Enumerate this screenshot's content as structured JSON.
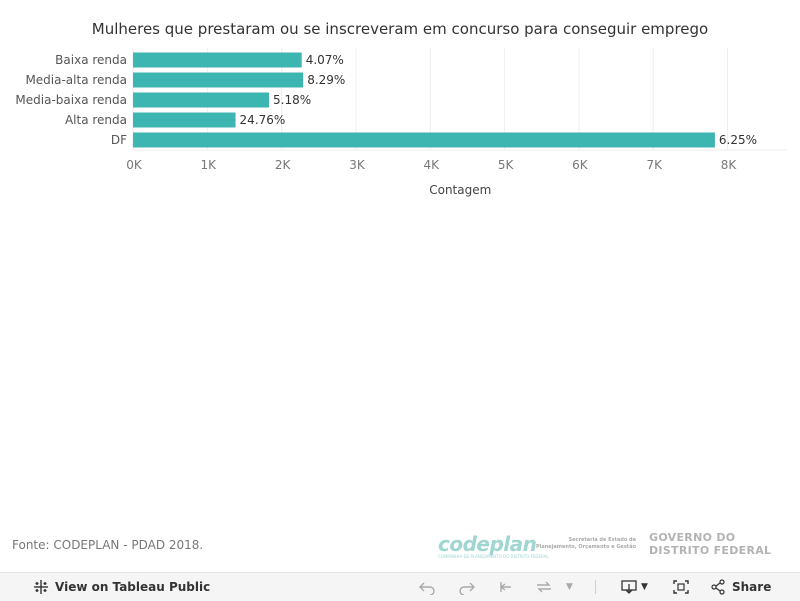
{
  "title": "Mulheres que prestaram ou se inscreveram em concurso para conseguir emprego",
  "chart_data": {
    "type": "bar",
    "orientation": "horizontal",
    "title": "Mulheres que prestaram ou se inscreveram em concurso para conseguir emprego",
    "categories": [
      "Baixa renda",
      "Media-alta renda",
      "Media-baixa renda",
      "Alta renda",
      "DF"
    ],
    "values": [
      2270,
      2290,
      1830,
      1380,
      7830
    ],
    "data_labels": [
      "4.07%",
      "8.29%",
      "5.18%",
      "24.76%",
      "6.25%"
    ],
    "xlabel": "Contagem",
    "ylabel": "",
    "xlim": [
      0,
      8800
    ],
    "ticks": [
      0,
      1000,
      2000,
      3000,
      4000,
      5000,
      6000,
      7000,
      8000
    ],
    "tick_labels": [
      "0K",
      "1K",
      "2K",
      "3K",
      "4K",
      "5K",
      "6K",
      "7K",
      "8K"
    ],
    "bar_color": "#3db6b2",
    "grid": true
  },
  "source_text": "Fonte: CODEPLAN - PDAD 2018.",
  "logos": {
    "codeplan": "codeplan",
    "codeplan_sub": "COMPANHIA DE PLANEJAMENTO DO DISTRITO FEDERAL",
    "secretaria": "Secretaria de Estado de Planejamento, Orçamento e Gestão",
    "governo_line1": "GOVERNO DO",
    "governo_line2": "DISTRITO FEDERAL"
  },
  "toolbar": {
    "view_label": "View on Tableau Public",
    "share_label": "Share"
  }
}
